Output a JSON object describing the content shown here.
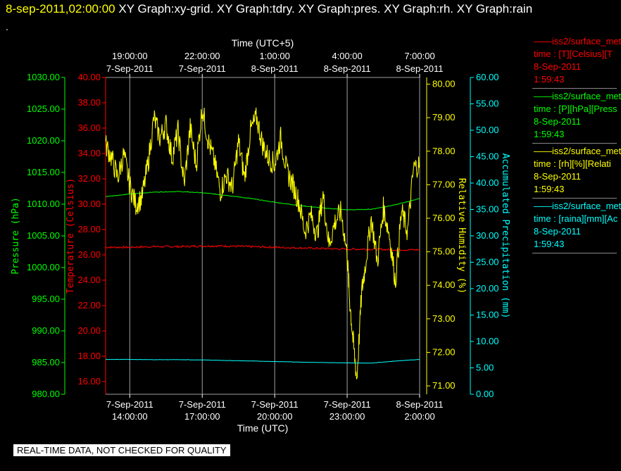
{
  "header": {
    "timestamp": "8-sep-2011,02:00:00",
    "titles": [
      "XY Graph:xy-grid.",
      "XY Graph:tdry.",
      "XY Graph:pres.",
      "XY Graph:rh.",
      "XY Graph:rain"
    ],
    "dot": "."
  },
  "legend": [
    {
      "line1": "iss2/surface_met",
      "line2": "time : [T][Celsius][T",
      "line3": "8-Sep-2011",
      "line4": "1:59:43",
      "color": "#ff0000"
    },
    {
      "line1": "iss2/surface_met",
      "line2": "time : [P][hPa][Press",
      "line3": "8-Sep-2011",
      "line4": "1:59:43",
      "color": "#00ff00"
    },
    {
      "line1": "iss2/surface_met",
      "line2": "time : [rh][%][Relati",
      "line3": "8-Sep-2011",
      "line4": "1:59:43",
      "color": "#ffff00"
    },
    {
      "line1": "iss2/surface_met",
      "line2": "time : [raina][mm][Ac",
      "line3": "8-Sep-2011",
      "line4": "1:59:43",
      "color": "#00ffff"
    }
  ],
  "quality_banner": "REAL-TIME DATA, NOT CHECKED FOR QUALITY",
  "colors": {
    "temperature": "#ff0000",
    "pressure": "#00ff00",
    "humidity": "#ffff00",
    "precip": "#00ffff",
    "grid": "#a0a0a0",
    "text": "#ffffff"
  },
  "chart_data": {
    "type": "line",
    "x_top_label": "Time (UTC+5)",
    "x_bottom_label": "Time (UTC)",
    "x_range_utc": [
      "7-Sep-2011 13:00:00",
      "8-Sep-2011 02:00:00"
    ],
    "x_bottom_ticks": [
      {
        "date": "7-Sep-2011",
        "time": "14:00:00"
      },
      {
        "date": "7-Sep-2011",
        "time": "17:00:00"
      },
      {
        "date": "7-Sep-2011",
        "time": "20:00:00"
      },
      {
        "date": "7-Sep-2011",
        "time": "23:00:00"
      },
      {
        "date": "8-Sep-2011",
        "time": "2:00:00"
      }
    ],
    "x_top_ticks": [
      {
        "time": "19:00:00",
        "date": "7-Sep-2011"
      },
      {
        "time": "22:00:00",
        "date": "7-Sep-2011"
      },
      {
        "time": "1:00:00",
        "date": "8-Sep-2011"
      },
      {
        "time": "4:00:00",
        "date": "8-Sep-2011"
      },
      {
        "time": "7:00:00",
        "date": "8-Sep-2011"
      }
    ],
    "grid": "vertical",
    "axes": [
      {
        "id": "pressure",
        "label": "Pressure (hPa)",
        "color": "#00ff00",
        "ylim": [
          980,
          1030
        ],
        "ticks": [
          "1030.00",
          "1025.00",
          "1020.00",
          "1015.00",
          "1010.00",
          "1005.00",
          "1000.00",
          "995.00",
          "990.00",
          "985.00",
          "980.00"
        ]
      },
      {
        "id": "temperature",
        "label": "Temperature (Celsius)",
        "color": "#ff0000",
        "ylim": [
          15,
          40
        ],
        "ticks": [
          "40.00",
          "38.00",
          "36.00",
          "34.00",
          "32.00",
          "30.00",
          "28.00",
          "26.00",
          "24.00",
          "22.00",
          "20.00",
          "18.00",
          "16.00"
        ]
      },
      {
        "id": "humidity",
        "label": "Relative Humidity (%)",
        "color": "#ffff00",
        "ylim": [
          70.75,
          80.2
        ],
        "ticks": [
          "80.00",
          "79.00",
          "78.00",
          "77.00",
          "76.00",
          "75.00",
          "74.00",
          "73.00",
          "72.00",
          "71.00"
        ]
      },
      {
        "id": "precip",
        "label": "Accumulated Precipitation (mm)",
        "color": "#00ffff",
        "ylim": [
          0,
          60
        ],
        "ticks": [
          "60.00",
          "55.00",
          "50.00",
          "45.00",
          "40.00",
          "35.00",
          "30.00",
          "25.00",
          "20.00",
          "15.00",
          "10.00",
          "5.00",
          "0.00"
        ]
      }
    ],
    "series": [
      {
        "axis": "temperature",
        "color": "#ff0000",
        "x_hours": [
          13,
          14,
          15,
          16,
          17,
          18,
          19,
          20,
          21,
          22,
          23,
          24,
          25,
          26
        ],
        "values": [
          26.6,
          26.6,
          26.65,
          26.65,
          26.7,
          26.7,
          26.65,
          26.6,
          26.55,
          26.5,
          26.45,
          26.45,
          26.4,
          26.4
        ]
      },
      {
        "axis": "pressure",
        "color": "#00ff00",
        "x_hours": [
          13,
          14,
          15,
          16,
          17,
          18,
          19,
          20,
          21,
          22,
          23,
          24,
          25,
          26
        ],
        "values": [
          1011.2,
          1011.6,
          1011.9,
          1012.0,
          1011.8,
          1011.4,
          1010.9,
          1010.3,
          1009.8,
          1009.4,
          1009.1,
          1009.2,
          1009.9,
          1010.9
        ]
      },
      {
        "axis": "humidity",
        "color": "#ffff00",
        "x_hours": [
          13,
          13.25,
          13.5,
          13.75,
          14,
          14.25,
          14.5,
          14.75,
          15,
          15.25,
          15.5,
          15.75,
          16,
          16.25,
          16.5,
          16.75,
          17,
          17.25,
          17.5,
          17.75,
          18,
          18.25,
          18.5,
          18.75,
          19,
          19.25,
          19.5,
          19.75,
          20,
          20.25,
          20.5,
          20.75,
          21,
          21.25,
          21.5,
          21.75,
          22,
          22.25,
          22.5,
          22.75,
          23,
          23.1,
          23.25,
          23.4,
          23.6,
          23.75,
          24,
          24.25,
          24.5,
          24.75,
          25,
          25.25,
          25.5,
          25.75,
          26
        ],
        "values": [
          78.2,
          77.8,
          77.2,
          77.9,
          77.0,
          76.4,
          76.6,
          77.6,
          79.0,
          78.4,
          78.8,
          77.8,
          78.6,
          77.0,
          78.7,
          77.6,
          79.3,
          78.3,
          77.7,
          76.8,
          77.3,
          76.9,
          78.3,
          77.2,
          78.6,
          79.0,
          78.2,
          77.8,
          77.6,
          78.4,
          77.4,
          77.0,
          76.5,
          75.6,
          76.1,
          75.5,
          76.7,
          75.2,
          75.9,
          76.2,
          74.9,
          73.6,
          72.3,
          71.2,
          73.8,
          74.6,
          76.0,
          74.7,
          76.3,
          75.5,
          74.1,
          76.2,
          75.6,
          77.5,
          77.6
        ]
      },
      {
        "axis": "precip",
        "color": "#00ffff",
        "x_hours": [
          13,
          14,
          15,
          16,
          17,
          18,
          19,
          20,
          21,
          22,
          23,
          24,
          25,
          26
        ],
        "values": [
          6.6,
          6.6,
          6.55,
          6.55,
          6.5,
          6.4,
          6.3,
          6.2,
          6.1,
          6.0,
          5.95,
          5.9,
          6.3,
          6.6
        ]
      }
    ]
  }
}
